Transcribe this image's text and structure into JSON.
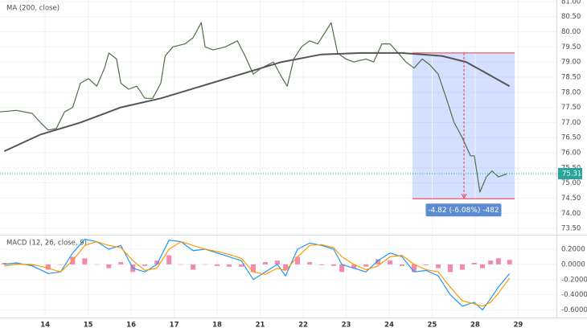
{
  "chart_data": [
    {
      "type": "line",
      "title": "MA (200, close)",
      "xlim": [
        -1.05,
        11.89
      ],
      "ylim": [
        73.29,
        81.05
      ],
      "grid": true,
      "yticks": [
        {
          "value": 81,
          "label": "81.00"
        },
        {
          "value": 80.5,
          "label": "80.50"
        },
        {
          "value": 80,
          "label": "80.00"
        },
        {
          "value": 79.5,
          "label": "79.50"
        },
        {
          "value": 79,
          "label": "79.00"
        },
        {
          "value": 78.5,
          "label": "78.50"
        },
        {
          "value": 78,
          "label": "78.00"
        },
        {
          "value": 77.5,
          "label": "77.50"
        },
        {
          "value": 77,
          "label": "77.00"
        },
        {
          "value": 76.5,
          "label": "76.50"
        },
        {
          "value": 76,
          "label": "76.00"
        },
        {
          "value": 75.5,
          "label": "75.50"
        },
        {
          "value": 75,
          "label": "75.00"
        },
        {
          "value": 74.5,
          "label": "74.50"
        },
        {
          "value": 74,
          "label": "74.00"
        },
        {
          "value": 73.5,
          "label": "73.50"
        }
      ],
      "series": [
        {
          "color": "#4f6f45",
          "width": 1.2,
          "x": [
            -1.05,
            -0.67,
            -0.3,
            -0.11,
            0.07,
            0.26,
            0.45,
            0.64,
            0.82,
            1.01,
            1.2,
            1.38,
            1.48,
            1.66,
            1.76,
            1.94,
            2.13,
            2.32,
            2.5,
            2.69,
            2.79,
            2.97,
            3.25,
            3.44,
            3.63,
            3.72,
            3.91,
            4.19,
            4.47,
            4.65,
            4.84,
            5.03,
            5.31,
            5.5,
            5.63,
            5.78,
            5.96,
            6.15,
            6.34,
            6.52,
            6.65,
            6.8,
            6.99,
            7.18,
            7.46,
            7.64,
            7.83,
            8.02,
            8.21,
            8.39,
            8.58,
            8.77,
            8.95,
            9.14,
            9.33,
            9.51,
            9.7,
            9.89,
            9.98,
            10.11,
            10.26,
            10.39,
            10.54,
            10.73
          ],
          "values": [
            77.35,
            77.4,
            77.3,
            77.0,
            76.75,
            76.8,
            77.35,
            77.5,
            78.3,
            78.45,
            78.2,
            78.8,
            79.3,
            79.1,
            78.3,
            78.1,
            78.2,
            77.8,
            77.8,
            78.3,
            79.2,
            79.5,
            79.6,
            79.8,
            80.3,
            79.5,
            79.4,
            79.5,
            79.7,
            79.2,
            78.6,
            78.8,
            79.0,
            78.5,
            78.2,
            79.1,
            79.5,
            79.7,
            79.6,
            80.0,
            80.3,
            79.3,
            79.1,
            79.0,
            79.1,
            79.0,
            79.6,
            79.6,
            79.3,
            79.0,
            78.8,
            79.1,
            78.9,
            78.6,
            77.8,
            77.0,
            76.5,
            75.9,
            75.9,
            74.7,
            75.2,
            75.4,
            75.2,
            75.3
          ]
        },
        {
          "color": "#555555",
          "width": 2,
          "x": [
            -0.95,
            -0.11,
            0.82,
            1.76,
            2.69,
            3.63,
            4.56,
            5.5,
            6.43,
            7.36,
            8.3,
            9.23,
            9.79,
            10.17,
            10.8
          ],
          "values": [
            76.05,
            76.6,
            77.0,
            77.5,
            77.8,
            78.2,
            78.6,
            79.0,
            79.25,
            79.3,
            79.3,
            79.2,
            79.0,
            78.7,
            78.2
          ]
        }
      ],
      "last_price": 75.31,
      "last_price_color": "#26a69a",
      "measure": {
        "x": [
          8.54,
          10.92
        ],
        "y": [
          79.3,
          74.48
        ],
        "arrow_x": 9.74,
        "label": "-4.82 (-6.08%) -482",
        "color": "#f23645"
      }
    },
    {
      "type": "macd",
      "title": "MACD (12, 26, close, 9)",
      "xlim": [
        -1.05,
        11.89
      ],
      "ylim": [
        -0.7,
        0.38
      ],
      "grid": true,
      "xticks": [
        {
          "value": 0,
          "label": "14"
        },
        {
          "value": 1,
          "label": "15"
        },
        {
          "value": 2,
          "label": "16"
        },
        {
          "value": 3,
          "label": "17"
        },
        {
          "value": 4,
          "label": "18"
        },
        {
          "value": 5,
          "label": "21"
        },
        {
          "value": 6,
          "label": "22"
        },
        {
          "value": 7,
          "label": "23"
        },
        {
          "value": 8,
          "label": "24"
        },
        {
          "value": 9,
          "label": "25"
        },
        {
          "value": 10,
          "label": "28"
        },
        {
          "value": 11,
          "label": "29"
        }
      ],
      "yticks": [
        {
          "value": 0.2,
          "label": "0.2000"
        },
        {
          "value": 0,
          "label": "0.0000"
        },
        {
          "value": -0.2,
          "label": "-0.2000"
        },
        {
          "value": -0.4,
          "label": "-0.4000"
        },
        {
          "value": -0.6,
          "label": "-0.6000"
        }
      ],
      "x": [
        -0.95,
        -0.67,
        -0.3,
        0.07,
        0.36,
        0.64,
        0.92,
        1.2,
        1.48,
        1.76,
        2.04,
        2.32,
        2.6,
        2.88,
        3.16,
        3.44,
        3.72,
        4.0,
        4.28,
        4.56,
        4.84,
        5.12,
        5.4,
        5.59,
        5.87,
        6.15,
        6.43,
        6.71,
        6.9,
        7.18,
        7.46,
        7.74,
        8.02,
        8.3,
        8.58,
        8.86,
        9.14,
        9.42,
        9.7,
        9.98,
        10.17,
        10.36,
        10.54,
        10.8
      ],
      "histogram": {
        "color": "#f06292",
        "values": [
          0.02,
          0.02,
          -0.02,
          -0.07,
          0,
          0.1,
          0.08,
          0,
          -0.05,
          0.03,
          -0.1,
          -0.02,
          0.05,
          0.12,
          0,
          -0.07,
          0,
          -0.02,
          -0.03,
          -0.03,
          -0.1,
          0.03,
          0.05,
          -0.07,
          0.1,
          0.03,
          -0.01,
          -0.02,
          -0.1,
          -0.05,
          -0.03,
          0.07,
          0.05,
          -0.02,
          -0.1,
          -0.01,
          -0.05,
          -0.1,
          -0.07,
          0.02,
          -0.05,
          0.05,
          0.08,
          0.06
        ]
      },
      "series": [
        {
          "color": "#2196f3",
          "width": 1.2,
          "values": [
            0.0,
            0.02,
            -0.02,
            -0.12,
            -0.1,
            0.15,
            0.33,
            0.3,
            0.2,
            0.25,
            -0.05,
            -0.1,
            0.0,
            0.32,
            0.3,
            0.18,
            0.2,
            0.15,
            0.1,
            0.05,
            -0.2,
            -0.1,
            0.0,
            -0.15,
            0.2,
            0.28,
            0.25,
            0.2,
            0.0,
            -0.05,
            -0.1,
            0.05,
            0.15,
            0.1,
            -0.1,
            -0.08,
            -0.15,
            -0.4,
            -0.55,
            -0.5,
            -0.6,
            -0.45,
            -0.3,
            -0.12
          ]
        },
        {
          "color": "#ff9800",
          "width": 1.2,
          "values": [
            -0.02,
            0.0,
            0.0,
            -0.05,
            -0.1,
            0.05,
            0.25,
            0.3,
            0.25,
            0.22,
            0.05,
            -0.08,
            -0.05,
            0.2,
            0.3,
            0.25,
            0.2,
            0.17,
            0.13,
            0.08,
            -0.1,
            -0.13,
            -0.05,
            -0.08,
            0.1,
            0.25,
            0.26,
            0.22,
            0.1,
            0.0,
            -0.07,
            -0.02,
            0.1,
            0.12,
            0.0,
            -0.07,
            -0.1,
            -0.3,
            -0.48,
            -0.52,
            -0.55,
            -0.5,
            -0.38,
            -0.18
          ]
        }
      ]
    }
  ]
}
